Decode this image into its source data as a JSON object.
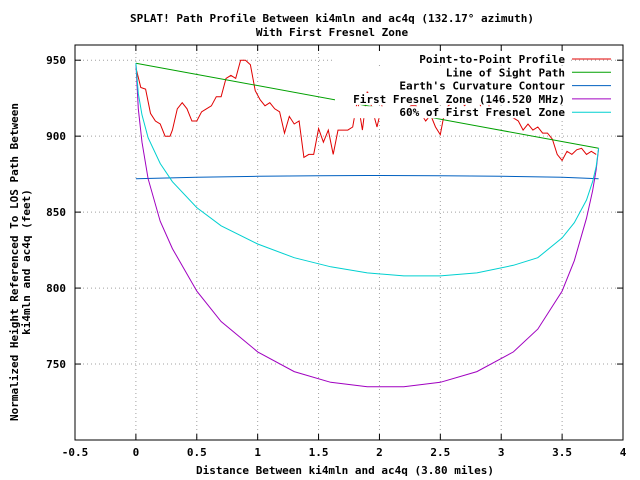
{
  "chart_data": {
    "type": "line",
    "title": "SPLAT! Path Profile Between ki4mln and ac4q (132.17° azimuth)",
    "subtitle": "With First Fresnel Zone",
    "xlabel": "Distance Between ki4mln and ac4q (3.80 miles)",
    "ylabel_line1": "Normalized Height Referenced To LOS Path Between",
    "ylabel_line2": "ki4mln and ac4q (feet)",
    "xlim": [
      -0.5,
      4
    ],
    "ylim": [
      700,
      960
    ],
    "x_ticks": [
      -0.5,
      0,
      0.5,
      1,
      1.5,
      2,
      2.5,
      3,
      3.5,
      4
    ],
    "x_tick_labels": [
      "-0.5",
      "0",
      "0.5",
      "1",
      "1.5",
      "2",
      "2.5",
      "3",
      "3.5",
      "4"
    ],
    "y_ticks": [
      750,
      800,
      850,
      900,
      950
    ],
    "y_tick_labels": [
      "750",
      "800",
      "850",
      "900",
      "950"
    ],
    "grid": true,
    "legend_position": "top-right",
    "series": [
      {
        "name": "Point-to-Point Profile",
        "color": "#e00000",
        "x": [
          0,
          0.04,
          0.08,
          0.12,
          0.16,
          0.2,
          0.24,
          0.28,
          0.3,
          0.34,
          0.38,
          0.42,
          0.46,
          0.5,
          0.54,
          0.58,
          0.62,
          0.66,
          0.7,
          0.74,
          0.78,
          0.82,
          0.86,
          0.9,
          0.94,
          0.98,
          1.02,
          1.06,
          1.1,
          1.14,
          1.18,
          1.22,
          1.26,
          1.3,
          1.34,
          1.38,
          1.42,
          1.46,
          1.5,
          1.54,
          1.58,
          1.62,
          1.66,
          1.7,
          1.74,
          1.78,
          1.82,
          1.86,
          1.9,
          1.94,
          1.98,
          2.02,
          2.06,
          2.1,
          2.14,
          2.18,
          2.22,
          2.26,
          2.3,
          2.34,
          2.38,
          2.42,
          2.46,
          2.5,
          2.54,
          2.58,
          2.62,
          2.66,
          2.7,
          2.74,
          2.78,
          2.82,
          2.86,
          2.9,
          2.94,
          2.98,
          3.02,
          3.06,
          3.1,
          3.14,
          3.18,
          3.22,
          3.26,
          3.3,
          3.34,
          3.38,
          3.42,
          3.46,
          3.5,
          3.54,
          3.58,
          3.62,
          3.66,
          3.7,
          3.74,
          3.78
        ],
        "y": [
          945,
          932,
          931,
          915,
          910,
          908,
          900,
          900,
          904,
          918,
          922,
          918,
          910,
          910,
          916,
          918,
          920,
          926,
          926,
          938,
          940,
          938,
          950,
          950,
          947,
          930,
          924,
          920,
          922,
          918,
          916,
          902,
          913,
          908,
          910,
          886,
          888,
          888,
          905,
          896,
          904,
          888,
          904,
          904,
          904,
          906,
          924,
          904,
          930,
          918,
          906,
          920,
          916,
          915,
          918,
          918,
          918,
          920,
          920,
          915,
          910,
          914,
          906,
          901,
          918,
          921,
          924,
          924,
          920,
          925,
          922,
          922,
          914,
          920,
          916,
          912,
          914,
          914,
          912,
          910,
          904,
          908,
          904,
          906,
          902,
          902,
          898,
          888,
          884,
          890,
          888,
          891,
          892,
          888,
          890,
          888
        ]
      },
      {
        "name": "Line of Sight Path",
        "color": "#00a000",
        "x": [
          0,
          3.8
        ],
        "y": [
          948,
          892
        ]
      },
      {
        "name": "Earth's Curvature Contour",
        "color": "#0060c0",
        "x": [
          0,
          0.5,
          1,
          1.5,
          1.9,
          2.5,
          3,
          3.5,
          3.8
        ],
        "y": [
          872,
          873,
          873.6,
          874,
          874.1,
          874,
          873.6,
          873,
          872
        ]
      },
      {
        "name": "First Fresnel Zone (146.520 MHz)",
        "color": "#a000c0",
        "x": [
          0,
          0.02,
          0.05,
          0.1,
          0.2,
          0.3,
          0.5,
          0.7,
          1,
          1.3,
          1.6,
          1.9,
          2.2,
          2.5,
          2.8,
          3.1,
          3.3,
          3.5,
          3.6,
          3.7,
          3.75,
          3.78,
          3.8
        ],
        "y": [
          948,
          918,
          896,
          872,
          844,
          826,
          798,
          778,
          758,
          745,
          738,
          735,
          735,
          738,
          745,
          758,
          773,
          798,
          818,
          846,
          864,
          878,
          892
        ]
      },
      {
        "name": "60% of First Fresnel Zone",
        "color": "#00d0d0",
        "x": [
          0,
          0.02,
          0.05,
          0.1,
          0.2,
          0.3,
          0.5,
          0.7,
          1,
          1.3,
          1.6,
          1.9,
          2.2,
          2.5,
          2.8,
          3.1,
          3.3,
          3.5,
          3.6,
          3.7,
          3.75,
          3.78,
          3.8
        ],
        "y": [
          948,
          928,
          914,
          899,
          882,
          870,
          853,
          841,
          829,
          820,
          814,
          810,
          808,
          808,
          810,
          815,
          820,
          833,
          843,
          858,
          870,
          880,
          892
        ]
      }
    ]
  }
}
